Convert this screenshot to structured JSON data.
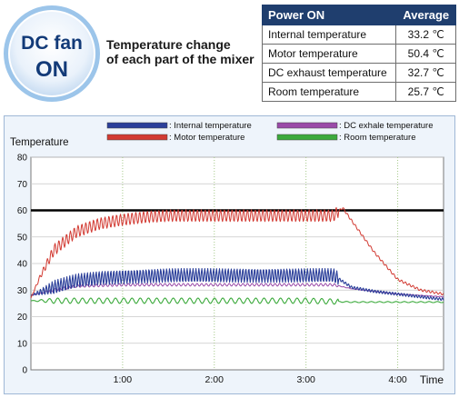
{
  "badge": {
    "line1": "DC fan",
    "line2": "ON"
  },
  "title": {
    "line1": "Temperature change",
    "line2": "of each part of the mixer"
  },
  "table": {
    "header": {
      "label": "Power ON",
      "value": "Average"
    },
    "rows": [
      {
        "label": "Internal temperature",
        "value": "33.2 ℃"
      },
      {
        "label": "Motor temperature",
        "value": "50.4 ℃"
      },
      {
        "label": "DC exhaust temperature",
        "value": "32.7 ℃"
      },
      {
        "label": "Room temperature",
        "value": "25.7 ℃"
      }
    ]
  },
  "colors": {
    "internal": "#2b3f9a",
    "motor": "#d23a32",
    "dc_exhale": "#9a4aa8",
    "room": "#3caa3c",
    "reference_line": "#000000",
    "header_bg": "#1f3e6e",
    "badge_text": "#123a78"
  },
  "chart_data": {
    "type": "line",
    "ylabel": "Temperature",
    "xlabel": "Time",
    "ylim": [
      0,
      80
    ],
    "y_ticks": [
      0,
      10,
      20,
      30,
      40,
      50,
      60,
      70,
      80
    ],
    "x_unit": "minutes",
    "xlim": [
      0,
      4.5
    ],
    "x_ticks": [
      {
        "value": 1,
        "label": "1:00"
      },
      {
        "value": 2,
        "label": "2:00"
      },
      {
        "value": 3,
        "label": "3:00"
      },
      {
        "value": 4,
        "label": "4:00"
      }
    ],
    "grid": true,
    "legend_position": "top",
    "reference_line": {
      "y": 60
    },
    "series": [
      {
        "key": "internal",
        "name": ": Internal temperature",
        "x": [
          0,
          0.25,
          0.5,
          0.75,
          1.0,
          1.5,
          2.0,
          2.5,
          3.0,
          3.3,
          3.5,
          3.75,
          4.0,
          4.25,
          4.5
        ],
        "values": [
          28,
          31,
          33.5,
          34.5,
          35,
          35.5,
          35.5,
          35.5,
          35.5,
          35.5,
          31,
          29.5,
          28.5,
          27.5,
          26.5
        ]
      },
      {
        "key": "motor",
        "name": ": Motor temperature",
        "x": [
          0,
          0.1,
          0.25,
          0.5,
          0.75,
          1.0,
          1.25,
          1.5,
          2.0,
          2.5,
          3.0,
          3.3,
          3.4,
          3.5,
          3.75,
          4.0,
          4.25,
          4.5
        ],
        "values": [
          27,
          35,
          45,
          52,
          55,
          56.5,
          57.5,
          58,
          58,
          58,
          58,
          58,
          61,
          56,
          44,
          34,
          30,
          28.5
        ]
      },
      {
        "key": "dc_exhale",
        "name": ": DC exhale temperature",
        "x": [
          0,
          0.25,
          0.5,
          1.0,
          1.5,
          2.0,
          2.5,
          3.0,
          3.3,
          3.5,
          3.75,
          4.0,
          4.25,
          4.5
        ],
        "values": [
          28,
          30,
          31.5,
          32,
          32,
          32,
          32,
          32,
          32,
          30.5,
          29.5,
          28.5,
          28,
          27.5
        ]
      },
      {
        "key": "room",
        "name": ": Room temperature",
        "x": [
          0,
          0.5,
          1.0,
          1.5,
          2.0,
          2.5,
          3.0,
          3.5,
          4.0,
          4.5
        ],
        "values": [
          26,
          26,
          26,
          26,
          26,
          26,
          26,
          25.5,
          25.5,
          25.5
        ]
      }
    ]
  }
}
